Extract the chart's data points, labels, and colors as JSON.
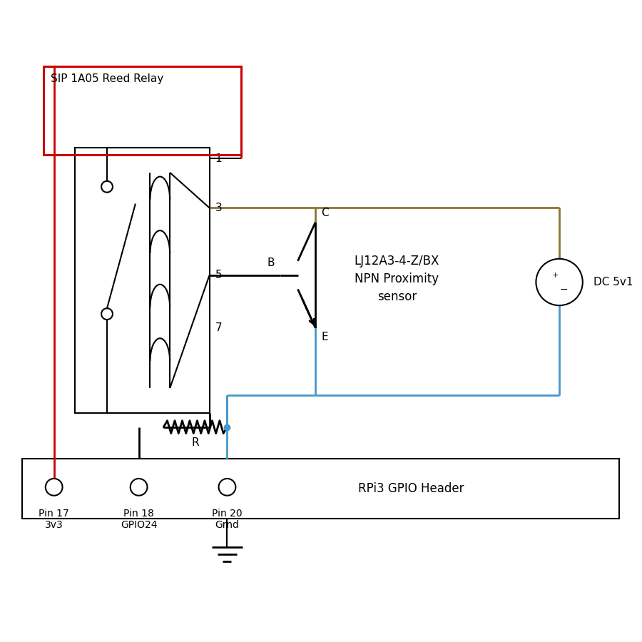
{
  "bg": "#ffffff",
  "black": "#000000",
  "red": "#cc0000",
  "blue": "#4499cc",
  "gold": "#8B7530",
  "relay_label": "SIP 1A05 Reed Relay",
  "sensor_label": "LJ12A3-4-Z/BX\nNPN Proximity\nsensor",
  "dc_label": "DC 5v1",
  "gpio_label": "RPi3 GPIO Header",
  "pin17_label": "Pin 17\n3v3",
  "pin18_label": "Pin 18\nGPIO24",
  "pin20_label": "Pin 20\nGrnd",
  "resistor_label": "R",
  "lw_main": 2.0,
  "lw_thin": 1.5
}
